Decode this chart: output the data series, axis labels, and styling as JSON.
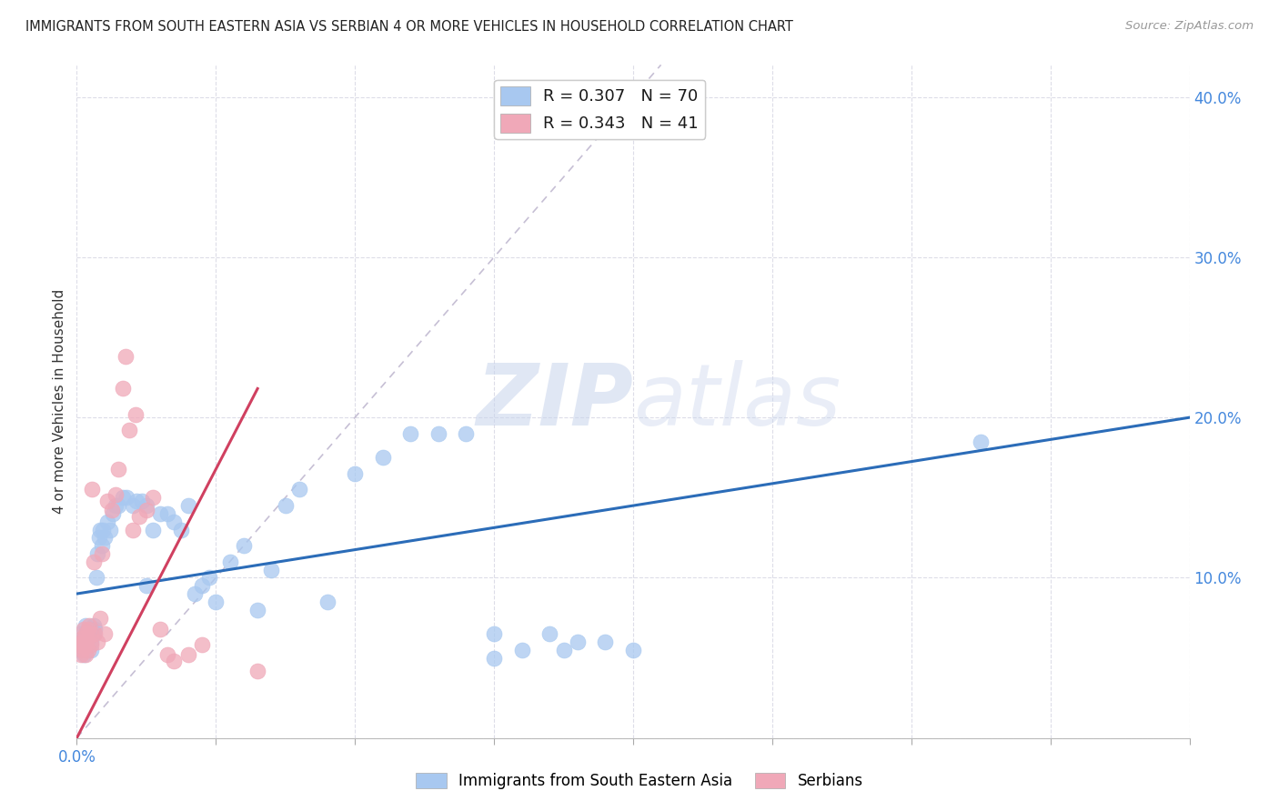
{
  "title": "IMMIGRANTS FROM SOUTH EASTERN ASIA VS SERBIAN 4 OR MORE VEHICLES IN HOUSEHOLD CORRELATION CHART",
  "source": "Source: ZipAtlas.com",
  "ylabel": "4 or more Vehicles in Household",
  "xlim": [
    0.0,
    0.8
  ],
  "ylim": [
    0.0,
    0.42
  ],
  "xticks": [
    0.0,
    0.1,
    0.2,
    0.3,
    0.4,
    0.5,
    0.6,
    0.7,
    0.8
  ],
  "xtick_labels_show": {
    "0.0": "0.0%"
  },
  "yticks": [
    0.0,
    0.1,
    0.2,
    0.3,
    0.4
  ],
  "ytick_labels": [
    "",
    "10.0%",
    "20.0%",
    "30.0%",
    "40.0%"
  ],
  "blue_color": "#A8C8F0",
  "pink_color": "#F0A8B8",
  "blue_line_color": "#2B6CB8",
  "pink_line_color": "#D04060",
  "diag_color": "#C0B8D0",
  "legend_R1": "R = 0.307",
  "legend_N1": "N = 70",
  "legend_R2": "R = 0.343",
  "legend_N2": "N = 41",
  "watermark_zip": "ZIP",
  "watermark_atlas": "atlas",
  "legend1_label": "Immigrants from South Eastern Asia",
  "legend2_label": "Serbians",
  "blue_line_x0": 0.0,
  "blue_line_y0": 0.09,
  "blue_line_x1": 0.8,
  "blue_line_y1": 0.2,
  "pink_line_x0": 0.0,
  "pink_line_y0": 0.0,
  "pink_line_x1": 0.13,
  "pink_line_y1": 0.218,
  "blue_x": [
    0.002,
    0.003,
    0.003,
    0.004,
    0.005,
    0.005,
    0.006,
    0.006,
    0.007,
    0.007,
    0.008,
    0.008,
    0.009,
    0.009,
    0.01,
    0.01,
    0.011,
    0.012,
    0.012,
    0.013,
    0.014,
    0.015,
    0.016,
    0.017,
    0.018,
    0.019,
    0.02,
    0.022,
    0.024,
    0.026,
    0.028,
    0.03,
    0.033,
    0.036,
    0.04,
    0.043,
    0.047,
    0.05,
    0.055,
    0.06,
    0.065,
    0.07,
    0.075,
    0.08,
    0.085,
    0.09,
    0.095,
    0.1,
    0.11,
    0.12,
    0.13,
    0.14,
    0.15,
    0.16,
    0.18,
    0.2,
    0.22,
    0.24,
    0.26,
    0.28,
    0.3,
    0.3,
    0.32,
    0.34,
    0.35,
    0.36,
    0.38,
    0.4,
    0.65,
    0.05
  ],
  "blue_y": [
    0.065,
    0.055,
    0.06,
    0.058,
    0.052,
    0.06,
    0.065,
    0.07,
    0.065,
    0.058,
    0.068,
    0.06,
    0.062,
    0.068,
    0.06,
    0.055,
    0.068,
    0.07,
    0.065,
    0.068,
    0.1,
    0.115,
    0.125,
    0.13,
    0.12,
    0.13,
    0.125,
    0.135,
    0.13,
    0.14,
    0.145,
    0.145,
    0.15,
    0.15,
    0.145,
    0.148,
    0.148,
    0.145,
    0.13,
    0.14,
    0.14,
    0.135,
    0.13,
    0.145,
    0.09,
    0.095,
    0.1,
    0.085,
    0.11,
    0.12,
    0.08,
    0.105,
    0.145,
    0.155,
    0.085,
    0.165,
    0.175,
    0.19,
    0.19,
    0.19,
    0.05,
    0.065,
    0.055,
    0.065,
    0.055,
    0.06,
    0.06,
    0.055,
    0.185,
    0.095
  ],
  "pink_x": [
    0.002,
    0.003,
    0.003,
    0.004,
    0.004,
    0.005,
    0.005,
    0.006,
    0.006,
    0.007,
    0.007,
    0.008,
    0.008,
    0.009,
    0.01,
    0.01,
    0.011,
    0.012,
    0.013,
    0.015,
    0.017,
    0.018,
    0.02,
    0.022,
    0.025,
    0.028,
    0.03,
    0.033,
    0.035,
    0.038,
    0.04,
    0.042,
    0.045,
    0.05,
    0.055,
    0.06,
    0.065,
    0.07,
    0.08,
    0.09,
    0.13
  ],
  "pink_y": [
    0.058,
    0.052,
    0.06,
    0.055,
    0.062,
    0.06,
    0.068,
    0.052,
    0.065,
    0.058,
    0.06,
    0.055,
    0.068,
    0.07,
    0.058,
    0.065,
    0.155,
    0.11,
    0.065,
    0.06,
    0.075,
    0.115,
    0.065,
    0.148,
    0.142,
    0.152,
    0.168,
    0.218,
    0.238,
    0.192,
    0.13,
    0.202,
    0.138,
    0.142,
    0.15,
    0.068,
    0.052,
    0.048,
    0.052,
    0.058,
    0.042
  ]
}
